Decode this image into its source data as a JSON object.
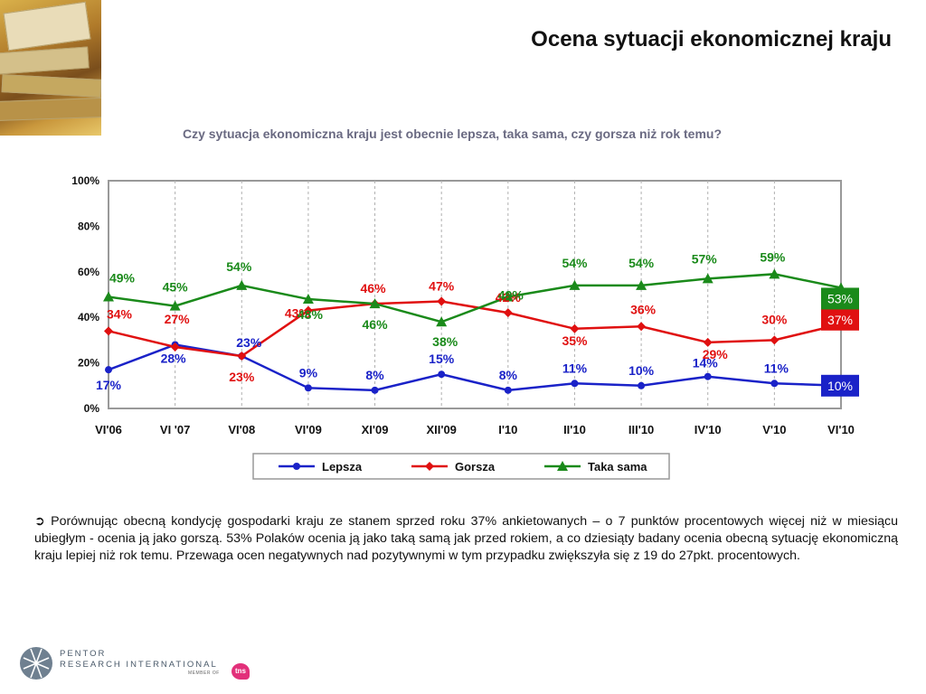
{
  "title": "Ocena sytuacji ekonomicznej kraju",
  "subtitle": "Czy sytuacja ekonomiczna kraju jest obecnie lepsza, taka sama, czy gorsza niż rok temu?",
  "note": {
    "arrow": "➲",
    "text": "Porównując obecną kondycję gospodarki kraju ze stanem sprzed roku 37% ankietowanych – o 7 punktów procentowych więcej niż w miesiącu ubiegłym - ocenia ją jako gorszą. 53% Polaków ocenia ją jako taką samą jak przed rokiem, a co dziesiąty badany ocenia obecną sytuację ekonomiczną kraju lepiej niż rok temu.  Przewaga ocen negatywnych nad pozytywnymi w tym przypadku zwiększyła się z 19 do 27pkt. procentowych."
  },
  "logo": {
    "line1": "PENTOR",
    "line2": "RESEARCH INTERNATIONAL",
    "member": "MEMBER OF",
    "tns": "tns"
  },
  "chart_data": {
    "type": "line",
    "categories": [
      "VI'06",
      "VI '07",
      "VI'08",
      "VI'09",
      "XI'09",
      "XII'09",
      "I'10",
      "II'10",
      "III'10",
      "IV'10",
      "V'10",
      "VI'10"
    ],
    "yticks": [
      "0%",
      "20%",
      "40%",
      "60%",
      "80%",
      "100%"
    ],
    "ylim": [
      0,
      100
    ],
    "grid": "vertical-dashed",
    "legend_position": "bottom",
    "series": [
      {
        "name": "Lepsza",
        "color": "#1a22c8",
        "marker": "circle",
        "values": [
          17,
          28,
          23,
          9,
          8,
          15,
          8,
          11,
          10,
          14,
          11,
          10
        ],
        "labels": [
          "17%",
          "28%",
          "23%",
          "9%",
          "8%",
          "15%",
          "8%",
          "11%",
          "10%",
          "14%",
          "11%",
          "10%"
        ]
      },
      {
        "name": "Gorsza",
        "color": "#e01010",
        "marker": "diamond",
        "values": [
          34,
          27,
          23,
          43,
          46,
          47,
          42,
          35,
          36,
          29,
          30,
          37
        ],
        "labels": [
          "34%",
          "27%",
          "23%",
          "43%",
          "46%",
          "47%",
          "42%",
          "35%",
          "36%",
          "29%",
          "30%",
          "37%"
        ]
      },
      {
        "name": "Taka sama",
        "color": "#1a8a1a",
        "marker": "triangle",
        "values": [
          49,
          45,
          54,
          48,
          46,
          38,
          49,
          54,
          54,
          57,
          59,
          53
        ],
        "labels": [
          "49%",
          "45%",
          "54%",
          "48%",
          "46%",
          "38%",
          "49%",
          "54%",
          "54%",
          "57%",
          "59%",
          "53%"
        ]
      }
    ]
  }
}
